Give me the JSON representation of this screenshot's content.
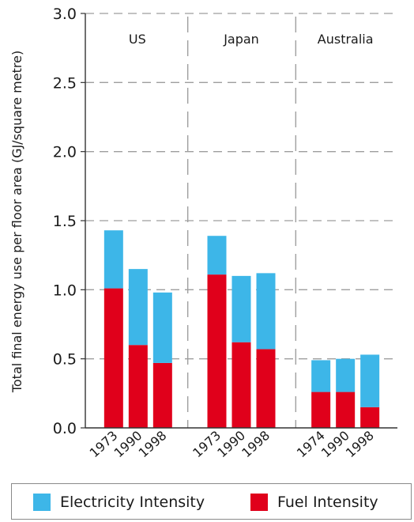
{
  "chart_data": {
    "type": "bar",
    "stacked": true,
    "ylabel": "Total final energy use per floor area (GJ/square metre)",
    "ylim": [
      0,
      3.0
    ],
    "yticks": [
      "0.0",
      "0.5",
      "1.0",
      "1.5",
      "2.0",
      "2.5",
      "3.0"
    ],
    "grid": "dashed horizontal gridlines",
    "groups": [
      {
        "name": "US",
        "categories": [
          "1973",
          "1990",
          "1998"
        ]
      },
      {
        "name": "Japan",
        "categories": [
          "1973",
          "1990",
          "1998"
        ]
      },
      {
        "name": "Australia",
        "categories": [
          "1974",
          "1990",
          "1998"
        ]
      }
    ],
    "series": [
      {
        "name": "Fuel Intensity",
        "color": "#e0001b",
        "values": [
          [
            1.01,
            0.6,
            0.47
          ],
          [
            1.11,
            0.62,
            0.57
          ],
          [
            0.26,
            0.26,
            0.15
          ]
        ]
      },
      {
        "name": "Electricity Intensity",
        "color": "#3db6e8",
        "values": [
          [
            0.42,
            0.55,
            0.51
          ],
          [
            0.28,
            0.48,
            0.55
          ],
          [
            0.23,
            0.24,
            0.38
          ]
        ]
      }
    ],
    "legend": {
      "position": "bottom",
      "items": [
        {
          "label": "Electricity Intensity",
          "color": "#3db6e8"
        },
        {
          "label": "Fuel Intensity",
          "color": "#e0001b"
        }
      ]
    }
  }
}
